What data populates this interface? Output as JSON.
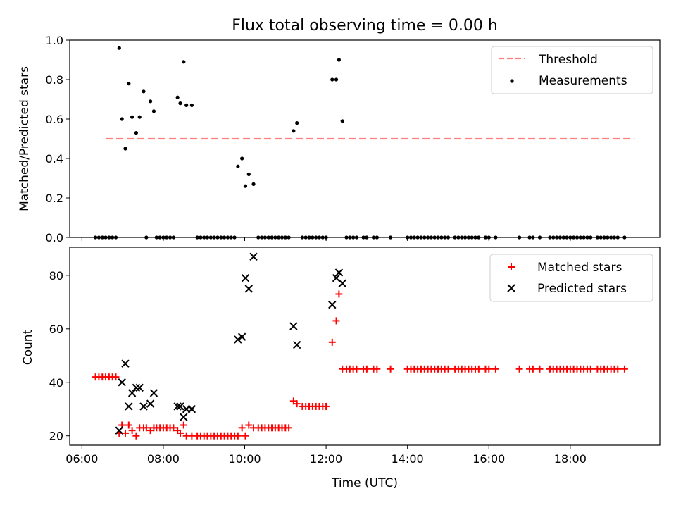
{
  "title": "Flux total observing time = 0.00 h",
  "chart_data": [
    {
      "type": "scatter",
      "ylabel": "Matched/Predicted stars",
      "ylim": [
        0,
        1.0
      ],
      "yticks": [
        "0.0",
        "0.2",
        "0.4",
        "0.6",
        "0.8",
        "1.0"
      ],
      "xlim": [
        "05:42",
        "20:12"
      ],
      "legend_position": "top-right",
      "threshold": {
        "name": "Threshold",
        "value": 0.5,
        "x_start": "06:35",
        "x_end": "19:35",
        "color": "#ff7f7f",
        "style": "dashed"
      },
      "measurements": {
        "name": "Measurements",
        "color": "#000000",
        "points": [
          [
            "06:55",
            0.96
          ],
          [
            "06:59",
            0.6
          ],
          [
            "07:04",
            0.45
          ],
          [
            "07:09",
            0.78
          ],
          [
            "07:14",
            0.61
          ],
          [
            "07:20",
            0.53
          ],
          [
            "07:25",
            0.61
          ],
          [
            "07:31",
            0.74
          ],
          [
            "07:41",
            0.69
          ],
          [
            "07:46",
            0.64
          ],
          [
            "08:21",
            0.71
          ],
          [
            "08:25",
            0.68
          ],
          [
            "08:30",
            0.89
          ],
          [
            "08:34",
            0.67
          ],
          [
            "08:42",
            0.67
          ],
          [
            "09:50",
            0.36
          ],
          [
            "09:56",
            0.4
          ],
          [
            "10:01",
            0.26
          ],
          [
            "10:06",
            0.32
          ],
          [
            "10:13",
            0.27
          ],
          [
            "11:12",
            0.54
          ],
          [
            "11:17",
            0.58
          ],
          [
            "12:09",
            0.8
          ],
          [
            "12:15",
            0.8
          ],
          [
            "12:19",
            0.9
          ],
          [
            "12:24",
            0.59
          ],
          [
            "06:20",
            0
          ],
          [
            "06:25",
            0
          ],
          [
            "06:30",
            0
          ],
          [
            "06:35",
            0
          ],
          [
            "06:40",
            0
          ],
          [
            "06:45",
            0
          ],
          [
            "06:50",
            0
          ],
          [
            "07:35",
            0
          ],
          [
            "07:50",
            0
          ],
          [
            "07:55",
            0
          ],
          [
            "08:00",
            0
          ],
          [
            "08:05",
            0
          ],
          [
            "08:10",
            0
          ],
          [
            "08:15",
            0
          ],
          [
            "08:50",
            0
          ],
          [
            "08:55",
            0
          ],
          [
            "09:00",
            0
          ],
          [
            "09:05",
            0
          ],
          [
            "09:10",
            0
          ],
          [
            "09:15",
            0
          ],
          [
            "09:20",
            0
          ],
          [
            "09:25",
            0
          ],
          [
            "09:30",
            0
          ],
          [
            "09:35",
            0
          ],
          [
            "09:40",
            0
          ],
          [
            "09:45",
            0
          ],
          [
            "10:20",
            0
          ],
          [
            "10:25",
            0
          ],
          [
            "10:30",
            0
          ],
          [
            "10:35",
            0
          ],
          [
            "10:40",
            0
          ],
          [
            "10:45",
            0
          ],
          [
            "10:50",
            0
          ],
          [
            "10:55",
            0
          ],
          [
            "11:00",
            0
          ],
          [
            "11:05",
            0
          ],
          [
            "11:25",
            0
          ],
          [
            "11:30",
            0
          ],
          [
            "11:35",
            0
          ],
          [
            "11:40",
            0
          ],
          [
            "11:45",
            0
          ],
          [
            "11:50",
            0
          ],
          [
            "11:55",
            0
          ],
          [
            "12:00",
            0
          ],
          [
            "12:30",
            0
          ],
          [
            "12:35",
            0
          ],
          [
            "12:40",
            0
          ],
          [
            "12:45",
            0
          ],
          [
            "12:55",
            0
          ],
          [
            "13:00",
            0
          ],
          [
            "13:10",
            0
          ],
          [
            "13:15",
            0
          ],
          [
            "13:35",
            0
          ],
          [
            "14:00",
            0
          ],
          [
            "14:05",
            0
          ],
          [
            "14:10",
            0
          ],
          [
            "14:15",
            0
          ],
          [
            "14:20",
            0
          ],
          [
            "14:25",
            0
          ],
          [
            "14:30",
            0
          ],
          [
            "14:35",
            0
          ],
          [
            "14:40",
            0
          ],
          [
            "14:45",
            0
          ],
          [
            "14:50",
            0
          ],
          [
            "14:55",
            0
          ],
          [
            "15:00",
            0
          ],
          [
            "15:10",
            0
          ],
          [
            "15:15",
            0
          ],
          [
            "15:20",
            0
          ],
          [
            "15:25",
            0
          ],
          [
            "15:30",
            0
          ],
          [
            "15:35",
            0
          ],
          [
            "15:40",
            0
          ],
          [
            "15:45",
            0
          ],
          [
            "15:55",
            0
          ],
          [
            "16:00",
            0
          ],
          [
            "16:10",
            0
          ],
          [
            "16:45",
            0
          ],
          [
            "17:00",
            0
          ],
          [
            "17:05",
            0
          ],
          [
            "17:15",
            0
          ],
          [
            "17:30",
            0
          ],
          [
            "17:35",
            0
          ],
          [
            "17:40",
            0
          ],
          [
            "17:45",
            0
          ],
          [
            "17:50",
            0
          ],
          [
            "17:55",
            0
          ],
          [
            "18:00",
            0
          ],
          [
            "18:05",
            0
          ],
          [
            "18:10",
            0
          ],
          [
            "18:15",
            0
          ],
          [
            "18:20",
            0
          ],
          [
            "18:25",
            0
          ],
          [
            "18:30",
            0
          ],
          [
            "18:40",
            0
          ],
          [
            "18:45",
            0
          ],
          [
            "18:50",
            0
          ],
          [
            "18:55",
            0
          ],
          [
            "19:00",
            0
          ],
          [
            "19:05",
            0
          ],
          [
            "19:10",
            0
          ],
          [
            "19:20",
            0
          ]
        ]
      }
    },
    {
      "type": "scatter",
      "xlabel": "Time (UTC)",
      "ylabel": "Count",
      "ylim": [
        16.5,
        90.5
      ],
      "yticks": [
        "20",
        "40",
        "60",
        "80"
      ],
      "xlim": [
        "05:42",
        "20:12"
      ],
      "xticks": [
        "06:00",
        "08:00",
        "10:00",
        "12:00",
        "14:00",
        "16:00",
        "18:00"
      ],
      "legend_position": "top-right",
      "series": [
        {
          "name": "Matched stars",
          "marker": "plus",
          "color": "#ff0000",
          "points": [
            [
              "06:20",
              42
            ],
            [
              "06:25",
              42
            ],
            [
              "06:30",
              42
            ],
            [
              "06:35",
              42
            ],
            [
              "06:40",
              42
            ],
            [
              "06:45",
              42
            ],
            [
              "06:50",
              42
            ],
            [
              "06:55",
              21
            ],
            [
              "06:59",
              24
            ],
            [
              "07:04",
              21
            ],
            [
              "07:09",
              24
            ],
            [
              "07:14",
              22
            ],
            [
              "07:20",
              20
            ],
            [
              "07:25",
              23
            ],
            [
              "07:31",
              23
            ],
            [
              "07:35",
              23
            ],
            [
              "07:41",
              22
            ],
            [
              "07:46",
              23
            ],
            [
              "07:50",
              23
            ],
            [
              "07:55",
              23
            ],
            [
              "08:00",
              23
            ],
            [
              "08:05",
              23
            ],
            [
              "08:10",
              23
            ],
            [
              "08:15",
              23
            ],
            [
              "08:21",
              22
            ],
            [
              "08:25",
              21
            ],
            [
              "08:30",
              24
            ],
            [
              "08:34",
              20
            ],
            [
              "08:42",
              20
            ],
            [
              "08:50",
              20
            ],
            [
              "08:55",
              20
            ],
            [
              "09:00",
              20
            ],
            [
              "09:05",
              20
            ],
            [
              "09:10",
              20
            ],
            [
              "09:15",
              20
            ],
            [
              "09:20",
              20
            ],
            [
              "09:25",
              20
            ],
            [
              "09:30",
              20
            ],
            [
              "09:35",
              20
            ],
            [
              "09:40",
              20
            ],
            [
              "09:45",
              20
            ],
            [
              "09:50",
              20
            ],
            [
              "09:56",
              23
            ],
            [
              "10:01",
              20
            ],
            [
              "10:06",
              24
            ],
            [
              "10:13",
              23
            ],
            [
              "10:20",
              23
            ],
            [
              "10:25",
              23
            ],
            [
              "10:30",
              23
            ],
            [
              "10:35",
              23
            ],
            [
              "10:40",
              23
            ],
            [
              "10:45",
              23
            ],
            [
              "10:50",
              23
            ],
            [
              "10:55",
              23
            ],
            [
              "11:00",
              23
            ],
            [
              "11:05",
              23
            ],
            [
              "11:12",
              33
            ],
            [
              "11:17",
              32
            ],
            [
              "11:25",
              31
            ],
            [
              "11:30",
              31
            ],
            [
              "11:35",
              31
            ],
            [
              "11:40",
              31
            ],
            [
              "11:45",
              31
            ],
            [
              "11:50",
              31
            ],
            [
              "11:55",
              31
            ],
            [
              "12:00",
              31
            ],
            [
              "12:09",
              55
            ],
            [
              "12:15",
              63
            ],
            [
              "12:19",
              73
            ],
            [
              "12:24",
              45
            ],
            [
              "12:30",
              45
            ],
            [
              "12:35",
              45
            ],
            [
              "12:40",
              45
            ],
            [
              "12:45",
              45
            ],
            [
              "12:55",
              45
            ],
            [
              "13:00",
              45
            ],
            [
              "13:10",
              45
            ],
            [
              "13:15",
              45
            ],
            [
              "13:35",
              45
            ],
            [
              "14:00",
              45
            ],
            [
              "14:05",
              45
            ],
            [
              "14:10",
              45
            ],
            [
              "14:15",
              45
            ],
            [
              "14:20",
              45
            ],
            [
              "14:25",
              45
            ],
            [
              "14:30",
              45
            ],
            [
              "14:35",
              45
            ],
            [
              "14:40",
              45
            ],
            [
              "14:45",
              45
            ],
            [
              "14:50",
              45
            ],
            [
              "14:55",
              45
            ],
            [
              "15:00",
              45
            ],
            [
              "15:10",
              45
            ],
            [
              "15:15",
              45
            ],
            [
              "15:20",
              45
            ],
            [
              "15:25",
              45
            ],
            [
              "15:30",
              45
            ],
            [
              "15:35",
              45
            ],
            [
              "15:40",
              45
            ],
            [
              "15:45",
              45
            ],
            [
              "15:55",
              45
            ],
            [
              "16:00",
              45
            ],
            [
              "16:10",
              45
            ],
            [
              "16:45",
              45
            ],
            [
              "17:00",
              45
            ],
            [
              "17:05",
              45
            ],
            [
              "17:15",
              45
            ],
            [
              "17:30",
              45
            ],
            [
              "17:35",
              45
            ],
            [
              "17:40",
              45
            ],
            [
              "17:45",
              45
            ],
            [
              "17:50",
              45
            ],
            [
              "17:55",
              45
            ],
            [
              "18:00",
              45
            ],
            [
              "18:05",
              45
            ],
            [
              "18:10",
              45
            ],
            [
              "18:15",
              45
            ],
            [
              "18:20",
              45
            ],
            [
              "18:25",
              45
            ],
            [
              "18:30",
              45
            ],
            [
              "18:40",
              45
            ],
            [
              "18:45",
              45
            ],
            [
              "18:50",
              45
            ],
            [
              "18:55",
              45
            ],
            [
              "19:00",
              45
            ],
            [
              "19:05",
              45
            ],
            [
              "19:10",
              45
            ],
            [
              "19:20",
              45
            ]
          ]
        },
        {
          "name": "Predicted stars",
          "marker": "x",
          "color": "#000000",
          "points": [
            [
              "06:55",
              22
            ],
            [
              "06:59",
              40
            ],
            [
              "07:04",
              47
            ],
            [
              "07:09",
              31
            ],
            [
              "07:14",
              36
            ],
            [
              "07:20",
              38
            ],
            [
              "07:25",
              38
            ],
            [
              "07:31",
              31
            ],
            [
              "07:41",
              32
            ],
            [
              "07:46",
              36
            ],
            [
              "08:21",
              31
            ],
            [
              "08:25",
              31
            ],
            [
              "08:30",
              27
            ],
            [
              "08:34",
              30
            ],
            [
              "08:42",
              30
            ],
            [
              "09:50",
              56
            ],
            [
              "09:56",
              57
            ],
            [
              "10:01",
              79
            ],
            [
              "10:06",
              75
            ],
            [
              "10:13",
              87
            ],
            [
              "11:12",
              61
            ],
            [
              "11:17",
              54
            ],
            [
              "12:09",
              69
            ],
            [
              "12:15",
              79
            ],
            [
              "12:19",
              81
            ],
            [
              "12:24",
              77
            ]
          ]
        }
      ]
    }
  ]
}
